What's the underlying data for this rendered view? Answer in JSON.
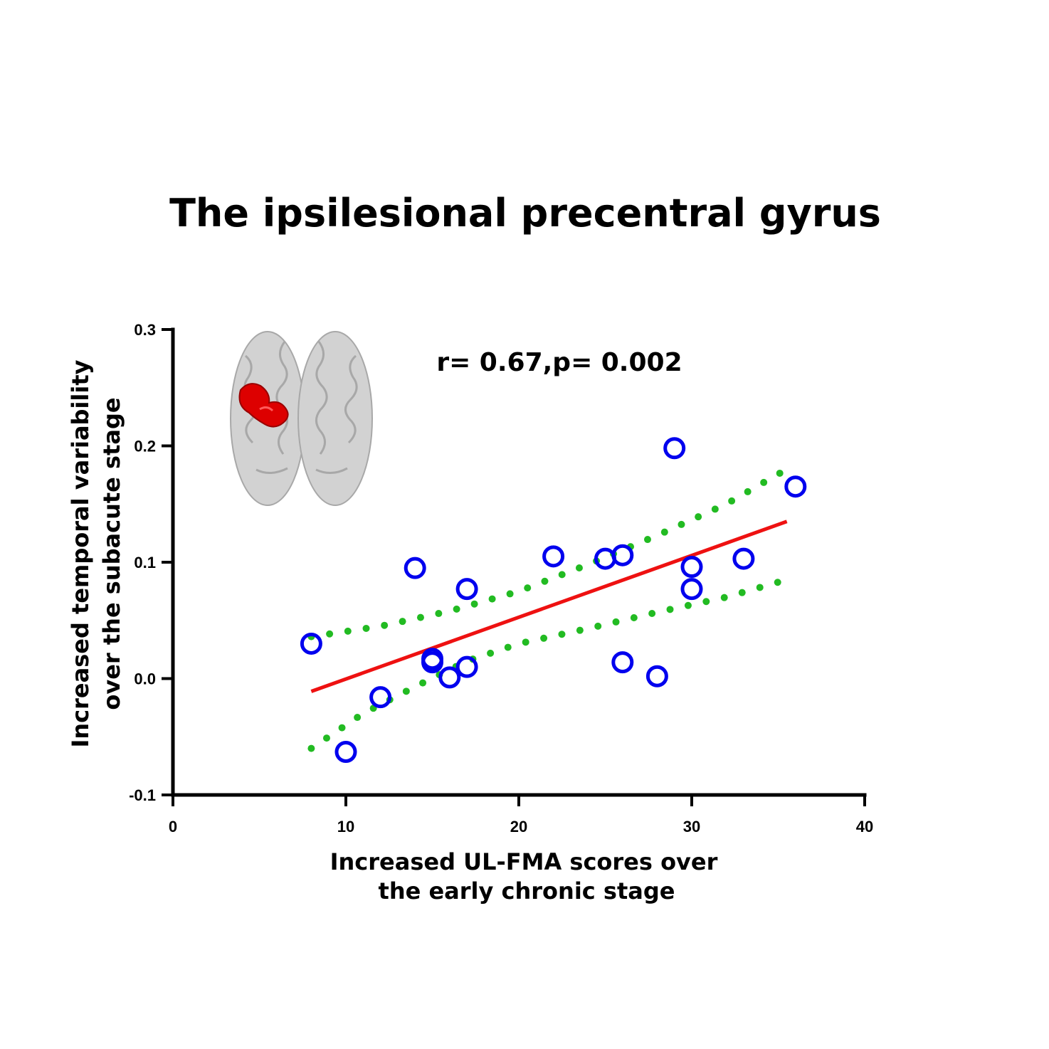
{
  "chart_data": {
    "type": "scatter",
    "title": "The ipsilesional precentral gyrus",
    "annotation": "r= 0.67,p= 0.002",
    "xlabel_lines": [
      "Increased UL-FMA scores over",
      "the early chronic stage"
    ],
    "ylabel_lines": [
      "Increased temporal variability",
      "over the subacute stage"
    ],
    "xlim": [
      0,
      40
    ],
    "ylim": [
      -0.1,
      0.3
    ],
    "xticks": [
      0,
      10,
      20,
      30,
      40
    ],
    "xtick_labels": [
      "0",
      "10",
      "20",
      "30",
      "40"
    ],
    "yticks": [
      -0.1,
      0.0,
      0.1,
      0.2,
      0.3
    ],
    "ytick_labels": [
      "-0.1",
      "0.0",
      "0.1",
      "0.2",
      "0.3"
    ],
    "grid": false,
    "inset_image": "brain-render-icon",
    "series": [
      {
        "marker": "open-circle",
        "color": "#0000ee",
        "points": [
          {
            "x": 8,
            "y": 0.03
          },
          {
            "x": 10,
            "y": -0.063
          },
          {
            "x": 12,
            "y": -0.016
          },
          {
            "x": 14,
            "y": 0.095
          },
          {
            "x": 15,
            "y": 0.014
          },
          {
            "x": 15,
            "y": 0.017
          },
          {
            "x": 16,
            "y": 0.001
          },
          {
            "x": 17,
            "y": 0.01
          },
          {
            "x": 17,
            "y": 0.077
          },
          {
            "x": 22,
            "y": 0.105
          },
          {
            "x": 25,
            "y": 0.103
          },
          {
            "x": 26,
            "y": 0.106
          },
          {
            "x": 26,
            "y": 0.014
          },
          {
            "x": 28,
            "y": 0.002
          },
          {
            "x": 29,
            "y": 0.198
          },
          {
            "x": 30,
            "y": 0.096
          },
          {
            "x": 30,
            "y": 0.077
          },
          {
            "x": 33,
            "y": 0.103
          },
          {
            "x": 36,
            "y": 0.165
          }
        ]
      }
    ],
    "fit_line": {
      "color": "#ee1111",
      "x": [
        8,
        35.5
      ],
      "y": [
        -0.011,
        0.135
      ]
    },
    "confidence_bands": {
      "color": "#22bb22",
      "style": "dotted",
      "upper": {
        "x": [
          8,
          12,
          16,
          20,
          24,
          28,
          32,
          35.5
        ],
        "y": [
          0.036,
          0.045,
          0.058,
          0.075,
          0.098,
          0.123,
          0.15,
          0.18
        ]
      },
      "lower": {
        "x": [
          8,
          11,
          14,
          17,
          20,
          24,
          28,
          32,
          35.5
        ],
        "y": [
          -0.06,
          -0.03,
          -0.007,
          0.015,
          0.03,
          0.043,
          0.057,
          0.07,
          0.085
        ]
      }
    }
  }
}
